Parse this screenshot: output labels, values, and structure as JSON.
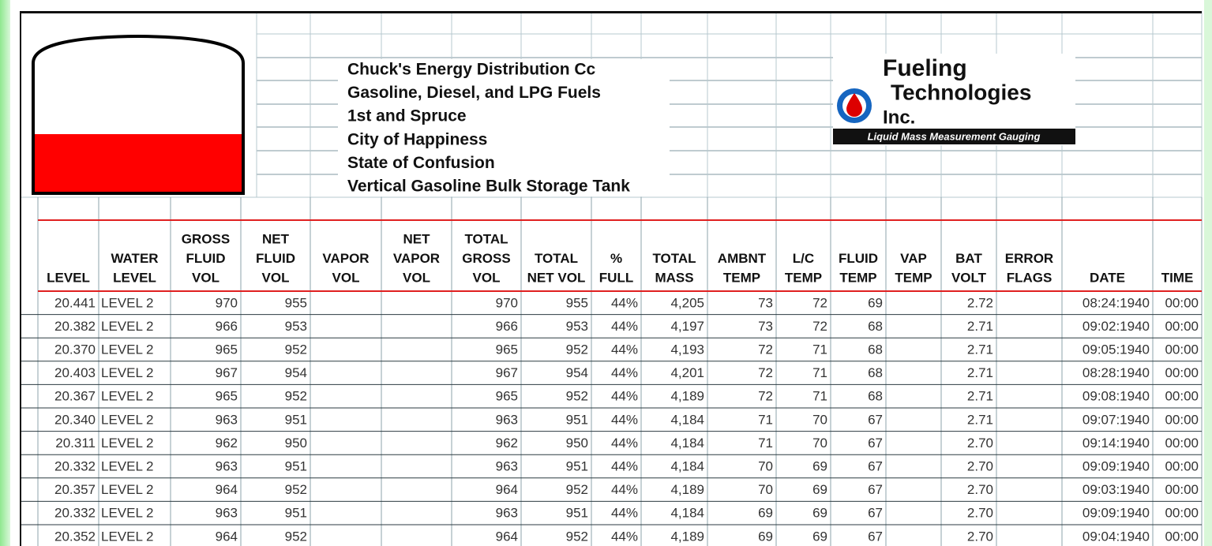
{
  "company_lines": [
    "Chuck's Energy Distribution Cc",
    "Gasoline, Diesel, and LPG Fuels",
    "1st and Spruce",
    "City of Happiness",
    "State of Confusion",
    "Vertical Gasoline Bulk Storage Tank"
  ],
  "logo": {
    "name_lines": [
      "Fueling",
      "Technologies",
      "Inc."
    ],
    "tagline": "Liquid Mass Measurement Gauging"
  },
  "table": {
    "header": [
      [
        "LEVEL"
      ],
      [
        "WATER",
        "LEVEL"
      ],
      [
        "GROSS",
        "FLUID",
        "VOL"
      ],
      [
        "NET",
        "FLUID",
        "VOL"
      ],
      [
        "VAPOR",
        "VOL"
      ],
      [
        "NET",
        "VAPOR",
        "VOL"
      ],
      [
        "TOTAL",
        "GROSS",
        "VOL"
      ],
      [
        "TOTAL",
        "NET VOL"
      ],
      [
        "%",
        "FULL"
      ],
      [
        "TOTAL",
        "MASS"
      ],
      [
        "AMBNT",
        "TEMP"
      ],
      [
        "L/C",
        "TEMP"
      ],
      [
        "FLUID",
        "TEMP"
      ],
      [
        "VAP",
        "TEMP"
      ],
      [
        "BAT",
        "VOLT"
      ],
      [
        "ERROR",
        "FLAGS"
      ],
      [
        "DATE"
      ],
      [
        "TIME"
      ]
    ],
    "rows": [
      [
        "20.441",
        "LEVEL 2",
        "970",
        "955",
        null,
        null,
        "970",
        "955",
        "44%",
        "4,205",
        "73",
        "72",
        "69",
        null,
        "2.72",
        null,
        "08:24:1940",
        "00:00"
      ],
      [
        "20.382",
        "LEVEL 2",
        "966",
        "953",
        null,
        null,
        "966",
        "953",
        "44%",
        "4,197",
        "73",
        "72",
        "68",
        null,
        "2.71",
        null,
        "09:02:1940",
        "00:00"
      ],
      [
        "20.370",
        "LEVEL 2",
        "965",
        "952",
        null,
        null,
        "965",
        "952",
        "44%",
        "4,193",
        "72",
        "71",
        "68",
        null,
        "2.71",
        null,
        "09:05:1940",
        "00:00"
      ],
      [
        "20.403",
        "LEVEL 2",
        "967",
        "954",
        null,
        null,
        "967",
        "954",
        "44%",
        "4,201",
        "72",
        "71",
        "68",
        null,
        "2.71",
        null,
        "08:28:1940",
        "00:00"
      ],
      [
        "20.367",
        "LEVEL 2",
        "965",
        "952",
        null,
        null,
        "965",
        "952",
        "44%",
        "4,189",
        "72",
        "71",
        "68",
        null,
        "2.71",
        null,
        "09:08:1940",
        "00:00"
      ],
      [
        "20.340",
        "LEVEL 2",
        "963",
        "951",
        null,
        null,
        "963",
        "951",
        "44%",
        "4,184",
        "71",
        "70",
        "67",
        null,
        "2.71",
        null,
        "09:07:1940",
        "00:00"
      ],
      [
        "20.311",
        "LEVEL 2",
        "962",
        "950",
        null,
        null,
        "962",
        "950",
        "44%",
        "4,184",
        "71",
        "70",
        "67",
        null,
        "2.70",
        null,
        "09:14:1940",
        "00:00"
      ],
      [
        "20.332",
        "LEVEL 2",
        "963",
        "951",
        null,
        null,
        "963",
        "951",
        "44%",
        "4,184",
        "70",
        "69",
        "67",
        null,
        "2.70",
        null,
        "09:09:1940",
        "00:00"
      ],
      [
        "20.357",
        "LEVEL 2",
        "964",
        "952",
        null,
        null,
        "964",
        "952",
        "44%",
        "4,189",
        "70",
        "69",
        "67",
        null,
        "2.70",
        null,
        "09:03:1940",
        "00:00"
      ],
      [
        "20.332",
        "LEVEL 2",
        "963",
        "951",
        null,
        null,
        "963",
        "951",
        "44%",
        "4,184",
        "69",
        "69",
        "67",
        null,
        "2.70",
        null,
        "09:09:1940",
        "00:00"
      ],
      [
        "20.352",
        "LEVEL 2",
        "964",
        "952",
        null,
        null,
        "964",
        "952",
        "44%",
        "4,189",
        "69",
        "69",
        "67",
        null,
        "2.70",
        null,
        "09:04:1940",
        "00:00"
      ]
    ]
  }
}
